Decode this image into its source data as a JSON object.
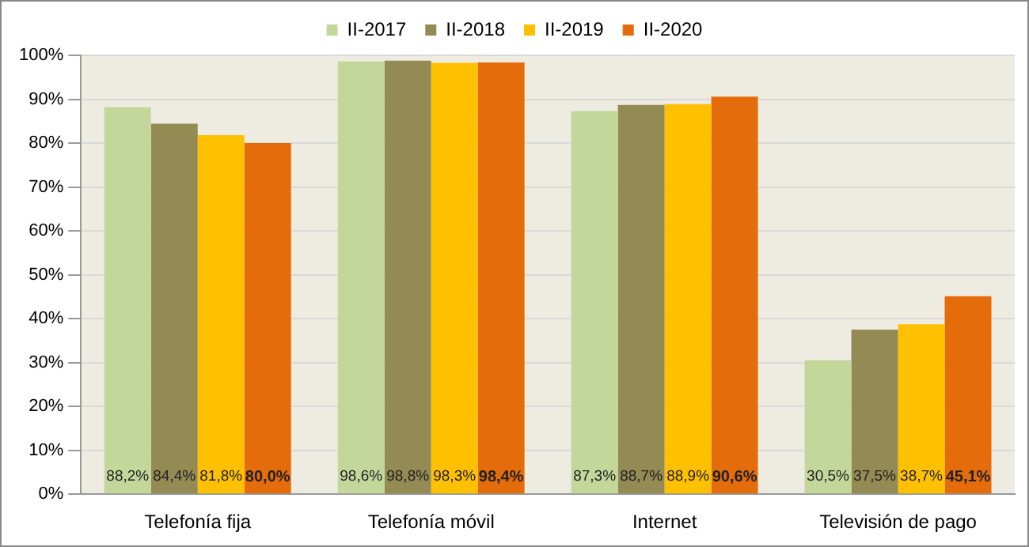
{
  "chart_data": {
    "type": "bar",
    "categories": [
      "Telefonía fija",
      "Telefonía móvil",
      "Internet",
      "Televisión de pago"
    ],
    "series": [
      {
        "name": "II-2017",
        "color": "#c4d79b",
        "values": [
          88.2,
          98.6,
          87.3,
          30.5
        ],
        "value_labels": [
          "88,2%",
          "98,6%",
          "87,3%",
          "30,5%"
        ]
      },
      {
        "name": "II-2018",
        "color": "#948a54",
        "values": [
          84.4,
          98.8,
          88.7,
          37.5
        ],
        "value_labels": [
          "84,4%",
          "98,8%",
          "88,7%",
          "37,5%"
        ]
      },
      {
        "name": "II-2019",
        "color": "#ffc000",
        "values": [
          81.8,
          98.3,
          88.9,
          38.7
        ],
        "value_labels": [
          "81,8%",
          "98,3%",
          "88,9%",
          "38,7%"
        ]
      },
      {
        "name": "II-2020",
        "color": "#e46c0a",
        "values": [
          80.0,
          98.4,
          90.6,
          45.1
        ],
        "value_labels": [
          "80,0%",
          "98,4%",
          "90,6%",
          "45,1%"
        ]
      }
    ],
    "ylim": [
      0,
      100
    ],
    "yticks": [
      {
        "value": 0,
        "label": "0%"
      },
      {
        "value": 10,
        "label": "10%"
      },
      {
        "value": 20,
        "label": "20%"
      },
      {
        "value": 30,
        "label": "30%"
      },
      {
        "value": 40,
        "label": "40%"
      },
      {
        "value": 50,
        "label": "50%"
      },
      {
        "value": 60,
        "label": "60%"
      },
      {
        "value": 70,
        "label": "70%"
      },
      {
        "value": 80,
        "label": "80%"
      },
      {
        "value": 90,
        "label": "90%"
      },
      {
        "value": 100,
        "label": "100%"
      }
    ],
    "grid": "y",
    "legend": "top"
  }
}
